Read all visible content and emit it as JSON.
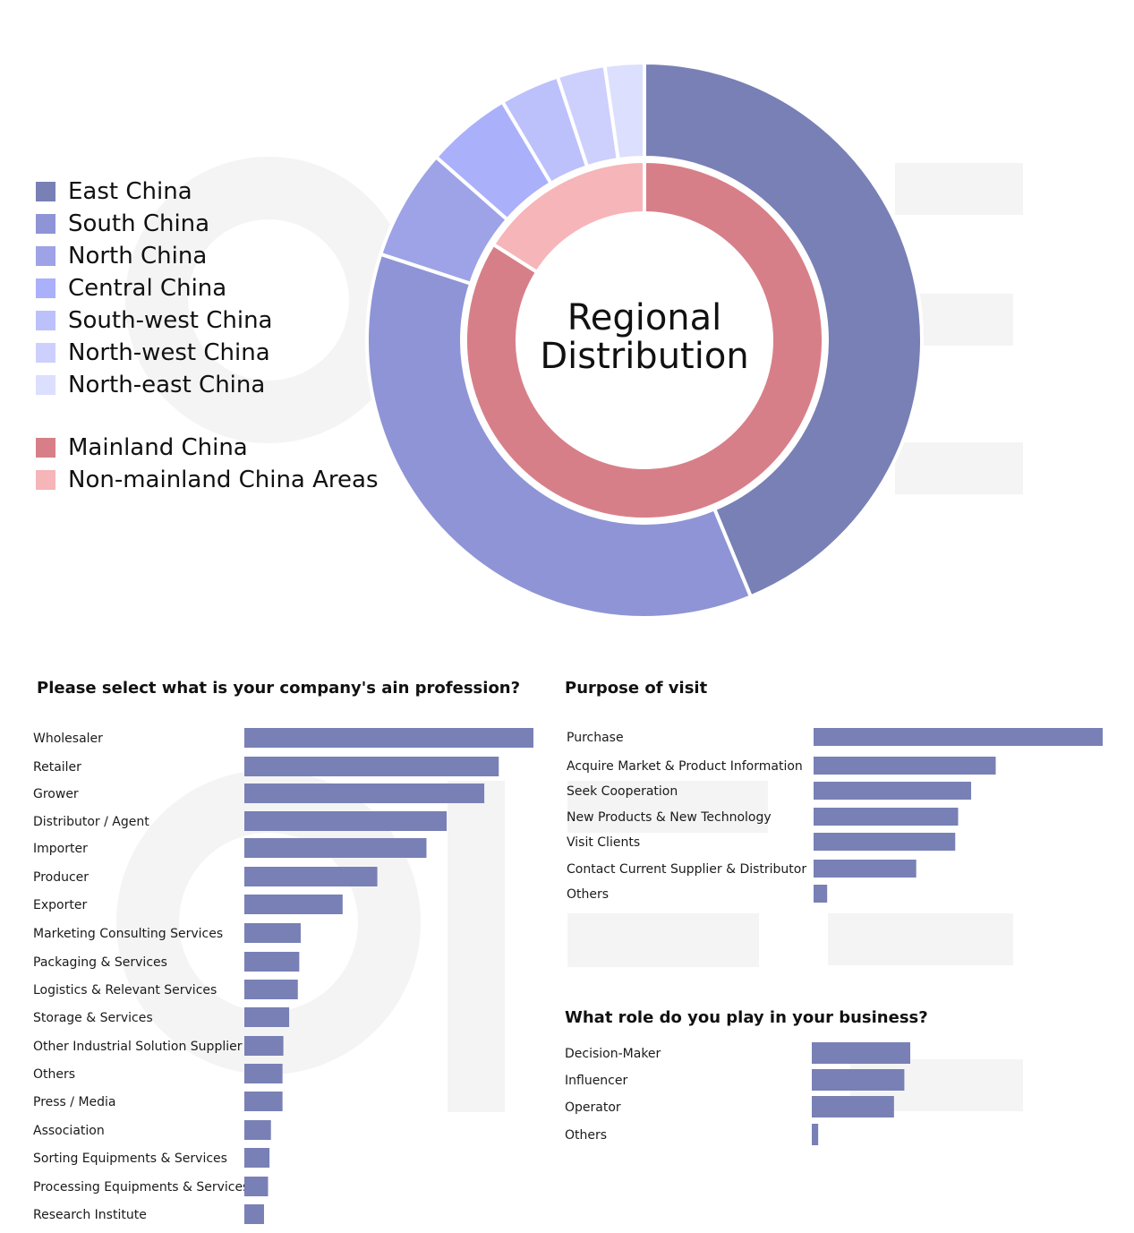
{
  "chart_data": [
    {
      "type": "pie",
      "title": "Regional Distribution",
      "outer_ring": {
        "labels": [
          "East China",
          "South China",
          "North China",
          "Central China",
          "South-west China",
          "North-west China",
          "North-east China"
        ],
        "values": [
          44.0,
          36.5,
          6.5,
          5.0,
          3.5,
          2.8,
          2.3
        ],
        "colors": [
          "#7880b5",
          "#8e94d5",
          "#9da3e6",
          "#aab0fa",
          "#bcc1fb",
          "#cdd0fd",
          "#dcdffd"
        ]
      },
      "inner_ring": {
        "labels": [
          "Mainland China",
          "Non-mainland China Areas"
        ],
        "values": [
          84.0,
          16.0
        ],
        "colors": [
          "#d77f88",
          "#f6b5b9"
        ]
      }
    },
    {
      "type": "bar",
      "orientation": "horizontal",
      "title": "Please select what is your company's ain profession?",
      "categories": [
        "Wholesaler",
        "Retailer",
        "Grower",
        "Distributor / Agent",
        "Importer",
        "Producer",
        "Exporter",
        "Marketing Consulting Services",
        "Packaging & Services",
        "Logistics & Relevant Services",
        "Storage & Services",
        "Other Industrial Solution Supplier",
        "Others",
        "Press / Media",
        "Association",
        "Sorting Equipments & Services",
        "Processing Equipments & Services",
        "Research Institute"
      ],
      "values": [
        100,
        88,
        83,
        70,
        63,
        46,
        34,
        19.5,
        19,
        18.5,
        15.5,
        13.5,
        13.2,
        13.2,
        9.2,
        8.7,
        8.2,
        6.8
      ],
      "color": "#7880b5"
    },
    {
      "type": "bar",
      "orientation": "horizontal",
      "title": "Purpose of visit",
      "categories": [
        "Purchase",
        "Acquire Market & Product Information",
        "Seek Cooperation",
        "New Products & New Technology",
        "Visit Clients",
        "Contact Current Supplier & Distributor",
        "Others"
      ],
      "values": [
        100,
        63,
        54.5,
        50,
        49,
        35.5,
        4.7
      ],
      "color": "#7880b5"
    },
    {
      "type": "bar",
      "orientation": "horizontal",
      "title": "What role do you play in your business?",
      "categories": [
        "Decision-Maker",
        "Influencer",
        "Operator",
        "Others"
      ],
      "values": [
        100,
        94,
        83.5,
        6.5
      ],
      "color": "#7880b5"
    }
  ]
}
